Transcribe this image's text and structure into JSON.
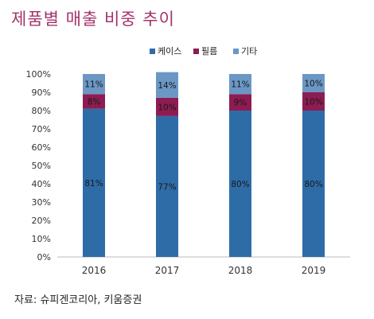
{
  "title": "제품별 매출 비중 추이",
  "source": "자료: 슈피겐코리아, 키움증권",
  "chart_data": {
    "type": "bar",
    "stacked": true,
    "percent": true,
    "categories": [
      "2016",
      "2017",
      "2018",
      "2019"
    ],
    "series": [
      {
        "name": "케이스",
        "values": [
          81,
          77,
          80,
          80
        ],
        "labels": [
          "81%",
          "77%",
          "80%",
          "80%"
        ],
        "color": "#2e6ca8"
      },
      {
        "name": "필름",
        "values": [
          8,
          10,
          9,
          10
        ],
        "labels": [
          "8%",
          "10%",
          "9%",
          "10%"
        ],
        "color": "#8e1c52"
      },
      {
        "name": "기타",
        "values": [
          11,
          14,
          11,
          10
        ],
        "labels": [
          "11%",
          "14%",
          "11%",
          "10%"
        ],
        "color": "#6b97c5"
      }
    ],
    "yticks": [
      "0%",
      "10%",
      "20%",
      "30%",
      "40%",
      "50%",
      "60%",
      "70%",
      "80%",
      "90%",
      "100%"
    ],
    "ylim": [
      0,
      100
    ],
    "legend_position": "top-center",
    "grid": false
  }
}
